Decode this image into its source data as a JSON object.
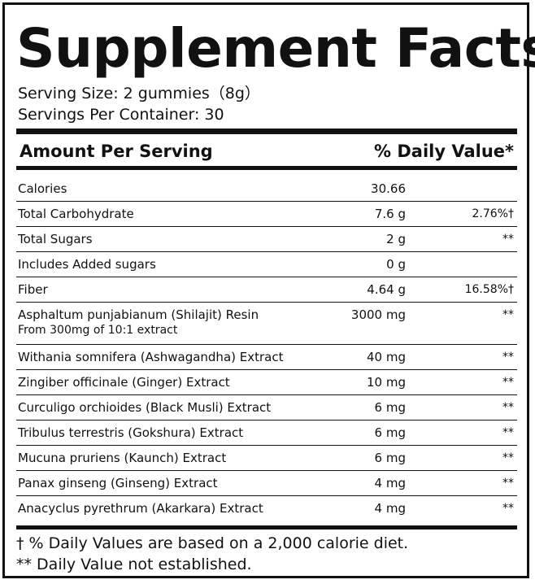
{
  "title": "Supplement Facts",
  "serving_size": "Serving Size: 2 gummies（8g）",
  "servings_per_container": "Servings Per Container: 30",
  "header": {
    "amount_label": "Amount Per Serving",
    "dv_label": "% Daily Value*"
  },
  "rows": [
    {
      "name": "Calories",
      "sub": "",
      "amount": "30.66",
      "dv": ""
    },
    {
      "name": "Total Carbohydrate",
      "sub": "",
      "amount": "7.6 g",
      "dv": "2.76%†"
    },
    {
      "name": "Total Sugars",
      "sub": "",
      "amount": "2 g",
      "dv": "**"
    },
    {
      "name": "Includes Added sugars",
      "sub": "",
      "amount": "0 g",
      "dv": ""
    },
    {
      "name": "Fiber",
      "sub": "",
      "amount": "4.64 g",
      "dv": "16.58%†"
    },
    {
      "name": "Asphaltum punjabianum (Shilajit) Resin",
      "sub": "From 300mg of 10:1 extract",
      "amount": "3000 mg",
      "dv": "**"
    },
    {
      "name": "Withania somnifera (Ashwagandha) Extract",
      "sub": "",
      "amount": "40 mg",
      "dv": "**"
    },
    {
      "name": "Zingiber officinale (Ginger) Extract",
      "sub": "",
      "amount": "10 mg",
      "dv": "**"
    },
    {
      "name": "Curculigo orchioides (Black Musli) Extract",
      "sub": "",
      "amount": "6 mg",
      "dv": "**"
    },
    {
      "name": "Tribulus terrestris (Gokshura) Extract",
      "sub": "",
      "amount": "6 mg",
      "dv": "**"
    },
    {
      "name": "Mucuna pruriens (Kaunch) Extract",
      "sub": "",
      "amount": "6 mg",
      "dv": "**"
    },
    {
      "name": "Panax ginseng (Ginseng) Extract",
      "sub": "",
      "amount": "4 mg",
      "dv": "**"
    },
    {
      "name": "Anacyclus pyrethrum (Akarkara) Extract",
      "sub": "",
      "amount": "4 mg",
      "dv": "**"
    }
  ],
  "footnotes": [
    "† % Daily Values are based on a 2,000 calorie diet.",
    "** Daily Value not established."
  ]
}
